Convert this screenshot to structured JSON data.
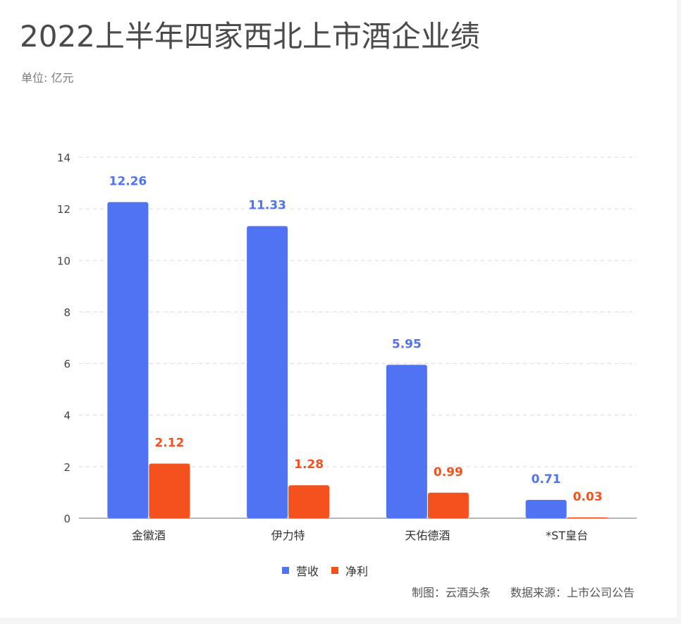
{
  "title": "2022上半年四家西北上市酒企业绩",
  "unit": "单位: 亿元",
  "footer": {
    "maker": "制图：云酒头条",
    "source": "数据来源：上市公司公告"
  },
  "colors": {
    "revenue": "#4f73f2",
    "profit": "#f4511e",
    "grid": "#d9d9d9",
    "axis": "#9e9e9e",
    "tick_text": "#444444"
  },
  "chart_data": {
    "type": "bar",
    "title": "2022上半年四家西北上市酒企业绩",
    "xlabel": "",
    "ylabel": "",
    "ylim": [
      0,
      14
    ],
    "yticks": [
      0,
      2,
      4,
      6,
      8,
      10,
      12,
      14
    ],
    "grid": true,
    "legend_position": "bottom",
    "categories": [
      "金徽酒",
      "伊力特",
      "天佑德酒",
      "*ST皇台"
    ],
    "series": [
      {
        "name": "营收",
        "values": [
          12.26,
          11.33,
          5.95,
          0.71
        ],
        "labels": [
          "12.26",
          "11.33",
          "5.95",
          "0.71"
        ]
      },
      {
        "name": "净利",
        "values": [
          2.12,
          1.28,
          0.99,
          0.03
        ],
        "labels": [
          "2.12",
          "1.28",
          "0.99",
          "0.03"
        ]
      }
    ]
  }
}
